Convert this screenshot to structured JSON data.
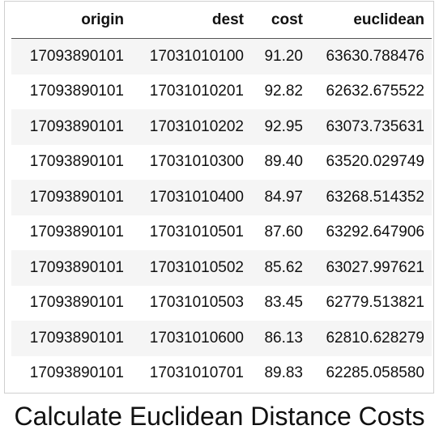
{
  "table": {
    "columns": [
      "origin",
      "dest",
      "cost",
      "euclidean"
    ],
    "rows": [
      [
        "17093890101",
        "17031010100",
        "91.20",
        "63630.788476"
      ],
      [
        "17093890101",
        "17031010201",
        "92.82",
        "62632.675522"
      ],
      [
        "17093890101",
        "17031010202",
        "92.95",
        "63073.735631"
      ],
      [
        "17093890101",
        "17031010300",
        "89.40",
        "63520.029749"
      ],
      [
        "17093890101",
        "17031010400",
        "84.97",
        "63268.514352"
      ],
      [
        "17093890101",
        "17031010501",
        "87.60",
        "63292.647906"
      ],
      [
        "17093890101",
        "17031010502",
        "85.62",
        "63027.997621"
      ],
      [
        "17093890101",
        "17031010503",
        "83.45",
        "62779.513821"
      ],
      [
        "17093890101",
        "17031010600",
        "86.13",
        "62810.628279"
      ],
      [
        "17093890101",
        "17031010701",
        "89.83",
        "62285.058580"
      ]
    ]
  },
  "caption": "Calculate Euclidean Distance Costs"
}
